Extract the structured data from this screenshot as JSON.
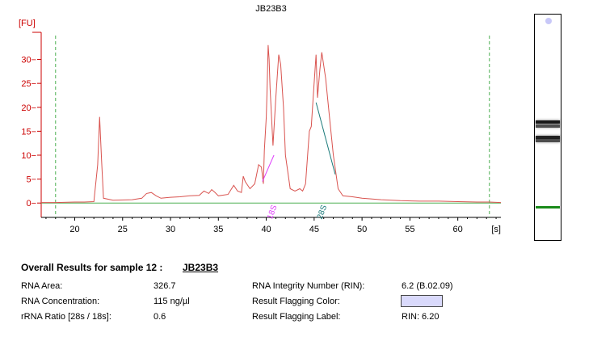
{
  "chart_data": {
    "type": "line",
    "title": "JB23B3",
    "ylabel": "[FU]",
    "xlabel": "[s]",
    "xlim": [
      16.5,
      64.5
    ],
    "ylim": [
      -3,
      36
    ],
    "x_ticks": [
      20,
      25,
      30,
      35,
      40,
      45,
      50,
      55,
      60
    ],
    "y_ticks": [
      0,
      5,
      10,
      15,
      20,
      25,
      30
    ],
    "ref_lines_x": [
      18.0,
      63.3
    ],
    "series": [
      {
        "color": "#d9534f",
        "points": [
          [
            16.5,
            0.1
          ],
          [
            18,
            0.1
          ],
          [
            20,
            0.2
          ],
          [
            21,
            0.2
          ],
          [
            22,
            0.3
          ],
          [
            22.4,
            8
          ],
          [
            22.6,
            18
          ],
          [
            22.8,
            9
          ],
          [
            23,
            1
          ],
          [
            24,
            0.6
          ],
          [
            26,
            0.7
          ],
          [
            27,
            1
          ],
          [
            27.5,
            2
          ],
          [
            28,
            2.2
          ],
          [
            28.5,
            1.5
          ],
          [
            29,
            1
          ],
          [
            30,
            1.2
          ],
          [
            31,
            1.3
          ],
          [
            32,
            1.5
          ],
          [
            33,
            1.6
          ],
          [
            33.5,
            2.5
          ],
          [
            34,
            2
          ],
          [
            34.3,
            2.8
          ],
          [
            34.6,
            2.3
          ],
          [
            35,
            1.5
          ],
          [
            36,
            1.8
          ],
          [
            36.6,
            3.7
          ],
          [
            37,
            2.5
          ],
          [
            37.4,
            2.2
          ],
          [
            37.6,
            5.6
          ],
          [
            37.8,
            4.5
          ],
          [
            38.3,
            3
          ],
          [
            38.8,
            4
          ],
          [
            39.2,
            8
          ],
          [
            39.5,
            7.5
          ],
          [
            39.7,
            4
          ],
          [
            39.8,
            11
          ],
          [
            40,
            18
          ],
          [
            40.1,
            25
          ],
          [
            40.2,
            33
          ],
          [
            40.3,
            30
          ],
          [
            40.4,
            24
          ],
          [
            40.7,
            12
          ],
          [
            41,
            22
          ],
          [
            41.3,
            31
          ],
          [
            41.5,
            29
          ],
          [
            41.8,
            20
          ],
          [
            42,
            10
          ],
          [
            42.5,
            3
          ],
          [
            43,
            2.5
          ],
          [
            43.5,
            3
          ],
          [
            43.8,
            2.5
          ],
          [
            44.1,
            4
          ],
          [
            44.5,
            15
          ],
          [
            44.7,
            16
          ],
          [
            45,
            25
          ],
          [
            45.2,
            31
          ],
          [
            45.35,
            22
          ],
          [
            45.6,
            28
          ],
          [
            45.8,
            31.5
          ],
          [
            46.2,
            26
          ],
          [
            46.6,
            18
          ],
          [
            47,
            10
          ],
          [
            47.5,
            3
          ],
          [
            48,
            1.5
          ],
          [
            49,
            1.3
          ],
          [
            50,
            1
          ],
          [
            52,
            0.7
          ],
          [
            54,
            0.5
          ],
          [
            56,
            0.4
          ],
          [
            58,
            0.4
          ],
          [
            60,
            0.3
          ],
          [
            62,
            0.2
          ],
          [
            63.3,
            0.2
          ],
          [
            64.5,
            0.1
          ]
        ]
      }
    ],
    "baseline": {
      "color": "#4caf50",
      "value": 0
    },
    "annotations": [
      {
        "label": "18S",
        "x": 40.9,
        "color": "#e040fb",
        "segment": [
          [
            39.6,
            4.5
          ],
          [
            40.8,
            10
          ]
        ]
      },
      {
        "label": "28S",
        "x": 46.1,
        "color": "#1b7a7a",
        "segment": [
          [
            45.2,
            21
          ],
          [
            47.2,
            6
          ]
        ]
      }
    ]
  },
  "gel": {
    "bands": [
      {
        "pos": 0.475,
        "intensity": 0.9
      },
      {
        "pos": 0.49,
        "intensity": 0.7
      },
      {
        "pos": 0.54,
        "intensity": 0.85
      },
      {
        "pos": 0.555,
        "intensity": 0.7
      },
      {
        "pos": 0.85,
        "intensity": 1,
        "color": "#1a8a1a"
      }
    ],
    "dot_color": "#c8c8f8"
  },
  "results": {
    "title": "Overall Results for sample 12  :",
    "sample_name": "JB23B3",
    "rna_area_label": "RNA Area:",
    "rna_area_value": "326.7",
    "rna_conc_label": "RNA Concentration:",
    "rna_conc_value": "115 ng/µl",
    "rrna_ratio_label": "rRNA Ratio [28s / 18s]:",
    "rrna_ratio_value": "0.6",
    "rin_label": "RNA Integrity Number (RIN):",
    "rin_value": "6.2   (B.02.09)",
    "flag_color_label": "Result Flagging Color:",
    "flag_color": "#d9d9fb",
    "flag_label_label": "Result Flagging Label:",
    "flag_label_value": "RIN: 6.20"
  }
}
